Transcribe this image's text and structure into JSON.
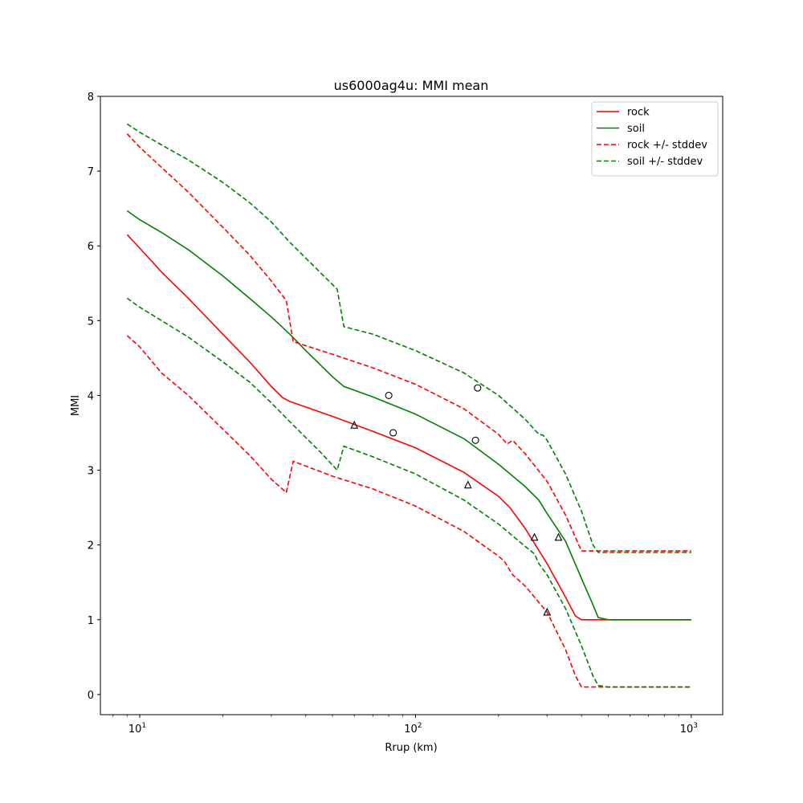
{
  "chart_data": {
    "type": "line",
    "title": "us6000ag4u: MMI mean",
    "xlabel": "Rrup (km)",
    "ylabel": "MMI",
    "xscale": "log",
    "xlim": [
      7.2,
      1300
    ],
    "ylim": [
      -0.27,
      8.0
    ],
    "x_ticks": [
      {
        "value": 10,
        "base": "10",
        "exp": "1"
      },
      {
        "value": 100,
        "base": "10",
        "exp": "2"
      },
      {
        "value": 1000,
        "base": "10",
        "exp": "3"
      }
    ],
    "y_ticks": [
      "0",
      "1",
      "2",
      "3",
      "4",
      "5",
      "6",
      "7",
      "8"
    ],
    "grid": false,
    "legend_position": "top-right",
    "series": [
      {
        "name": "rock",
        "color": "#ff0000",
        "style": "solid",
        "points": [
          [
            9,
            6.15
          ],
          [
            10,
            5.97
          ],
          [
            12,
            5.65
          ],
          [
            15,
            5.3
          ],
          [
            20,
            4.82
          ],
          [
            25,
            4.45
          ],
          [
            30,
            4.12
          ],
          [
            33,
            3.97
          ],
          [
            35,
            3.92
          ],
          [
            50,
            3.72
          ],
          [
            70,
            3.52
          ],
          [
            100,
            3.3
          ],
          [
            150,
            2.97
          ],
          [
            200,
            2.65
          ],
          [
            220,
            2.5
          ],
          [
            250,
            2.22
          ],
          [
            300,
            1.75
          ],
          [
            350,
            1.3
          ],
          [
            380,
            1.05
          ],
          [
            400,
            1.0
          ],
          [
            1000,
            1.0
          ]
        ]
      },
      {
        "name": "soil",
        "color": "#008000",
        "style": "solid",
        "points": [
          [
            9,
            6.47
          ],
          [
            10,
            6.35
          ],
          [
            12,
            6.18
          ],
          [
            15,
            5.95
          ],
          [
            20,
            5.6
          ],
          [
            25,
            5.3
          ],
          [
            30,
            5.05
          ],
          [
            35,
            4.82
          ],
          [
            40,
            4.6
          ],
          [
            50,
            4.25
          ],
          [
            55,
            4.12
          ],
          [
            70,
            3.98
          ],
          [
            100,
            3.75
          ],
          [
            150,
            3.42
          ],
          [
            200,
            3.08
          ],
          [
            250,
            2.78
          ],
          [
            280,
            2.6
          ],
          [
            300,
            2.42
          ],
          [
            350,
            2.05
          ],
          [
            400,
            1.55
          ],
          [
            440,
            1.2
          ],
          [
            460,
            1.03
          ],
          [
            500,
            1.0
          ],
          [
            1000,
            1.0
          ]
        ]
      },
      {
        "name": "rock +/- stddev",
        "color": "#ff0000",
        "style": "dashed",
        "points": [
          [
            9,
            7.5
          ],
          [
            10,
            7.32
          ],
          [
            12,
            7.05
          ],
          [
            15,
            6.72
          ],
          [
            20,
            6.25
          ],
          [
            25,
            5.88
          ],
          [
            30,
            5.53
          ],
          [
            34,
            5.27
          ],
          [
            36,
            4.72
          ],
          [
            50,
            4.55
          ],
          [
            70,
            4.37
          ],
          [
            100,
            4.15
          ],
          [
            150,
            3.82
          ],
          [
            200,
            3.48
          ],
          [
            215,
            3.35
          ],
          [
            225,
            3.4
          ],
          [
            250,
            3.22
          ],
          [
            300,
            2.85
          ],
          [
            350,
            2.4
          ],
          [
            380,
            2.1
          ],
          [
            400,
            1.92
          ],
          [
            1000,
            1.92
          ]
        ]
      },
      {
        "name": "",
        "color": "#ff0000",
        "style": "dashed",
        "points": [
          [
            9,
            4.8
          ],
          [
            10,
            4.65
          ],
          [
            12,
            4.3
          ],
          [
            15,
            4.0
          ],
          [
            20,
            3.55
          ],
          [
            25,
            3.2
          ],
          [
            30,
            2.88
          ],
          [
            34,
            2.7
          ],
          [
            36,
            3.12
          ],
          [
            50,
            2.92
          ],
          [
            70,
            2.75
          ],
          [
            100,
            2.52
          ],
          [
            150,
            2.18
          ],
          [
            200,
            1.85
          ],
          [
            210,
            1.78
          ],
          [
            225,
            1.6
          ],
          [
            250,
            1.45
          ],
          [
            300,
            1.1
          ],
          [
            350,
            0.6
          ],
          [
            380,
            0.25
          ],
          [
            400,
            0.1
          ],
          [
            1000,
            0.1
          ]
        ]
      },
      {
        "name": "soil +/- stddev",
        "color": "#008000",
        "style": "dashed",
        "points": [
          [
            9,
            7.63
          ],
          [
            10,
            7.52
          ],
          [
            12,
            7.35
          ],
          [
            15,
            7.15
          ],
          [
            20,
            6.85
          ],
          [
            25,
            6.58
          ],
          [
            30,
            6.32
          ],
          [
            35,
            6.05
          ],
          [
            45,
            5.65
          ],
          [
            52,
            5.42
          ],
          [
            55,
            4.92
          ],
          [
            70,
            4.82
          ],
          [
            100,
            4.6
          ],
          [
            150,
            4.3
          ],
          [
            200,
            4.0
          ],
          [
            250,
            3.68
          ],
          [
            280,
            3.48
          ],
          [
            290,
            3.47
          ],
          [
            300,
            3.4
          ],
          [
            350,
            2.95
          ],
          [
            400,
            2.45
          ],
          [
            440,
            2.0
          ],
          [
            460,
            1.9
          ],
          [
            500,
            1.9
          ],
          [
            1000,
            1.9
          ]
        ]
      },
      {
        "name": "",
        "color": "#008000",
        "style": "dashed",
        "points": [
          [
            9,
            5.3
          ],
          [
            10,
            5.18
          ],
          [
            12,
            5.0
          ],
          [
            15,
            4.78
          ],
          [
            20,
            4.45
          ],
          [
            25,
            4.18
          ],
          [
            30,
            3.9
          ],
          [
            35,
            3.65
          ],
          [
            45,
            3.25
          ],
          [
            52,
            3.0
          ],
          [
            55,
            3.32
          ],
          [
            70,
            3.18
          ],
          [
            100,
            2.95
          ],
          [
            150,
            2.6
          ],
          [
            200,
            2.28
          ],
          [
            250,
            1.98
          ],
          [
            270,
            1.88
          ],
          [
            280,
            1.75
          ],
          [
            300,
            1.6
          ],
          [
            350,
            1.15
          ],
          [
            400,
            0.65
          ],
          [
            440,
            0.25
          ],
          [
            460,
            0.12
          ],
          [
            500,
            0.1
          ],
          [
            1000,
            0.1
          ]
        ]
      }
    ],
    "markers": {
      "circles": [
        [
          80,
          4.0
        ],
        [
          83,
          3.5
        ],
        [
          165,
          3.4
        ],
        [
          168,
          4.1
        ]
      ],
      "triangles": [
        [
          60,
          3.6
        ],
        [
          155,
          2.8
        ],
        [
          270,
          2.1
        ],
        [
          330,
          2.1
        ],
        [
          300,
          1.1
        ]
      ]
    }
  }
}
